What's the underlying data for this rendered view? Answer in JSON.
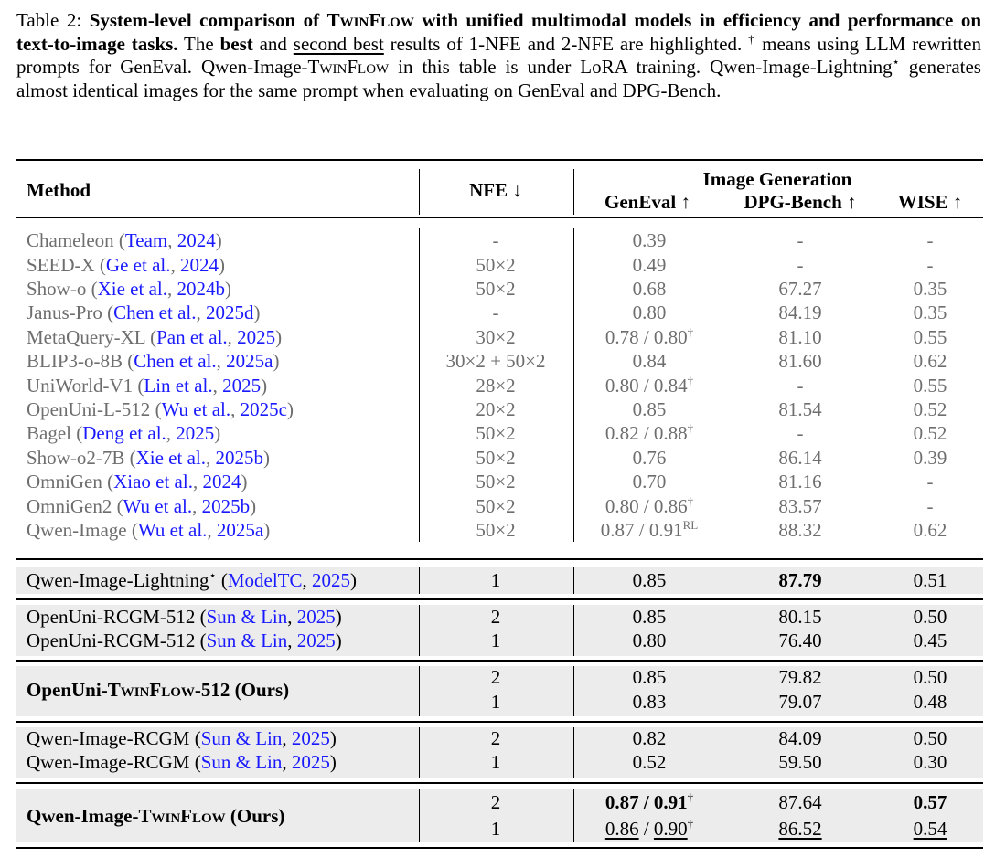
{
  "caption": {
    "label": "Table 2: ",
    "bold_1": "System-level comparison of ",
    "twinflow": "TwinFlow",
    "bold_2": " with unified multimodal models in efficiency and performance on text-to-image tasks.",
    "text_1": " The ",
    "best": "best",
    "text_2": " and ",
    "second_best": "second best",
    "text_3": " results of 1-NFE and 2-NFE are highlighted. ",
    "dagger": "†",
    "text_4": " means using LLM rewritten prompts for GenEval. Qwen-Image-",
    "text_5": " in this table is under LoRA training. Qwen-Image-Lightning",
    "star": "⋆",
    "text_6": " generates almost identical images for the same prompt when evaluating on GenEval and DPG-Bench."
  },
  "header": {
    "method": "Method",
    "nfe": "NFE ↓",
    "group": "Image Generation",
    "geneval": "GenEval ↑",
    "dpg": "DPG-Bench ↑",
    "wise": "WISE ↑"
  },
  "baselines": [
    {
      "name": "Chameleon",
      "author": "Team",
      "year": "2024",
      "nfe": "-",
      "geneval": [
        {
          "t": "0.39"
        }
      ],
      "dpg": [
        {
          "t": "-"
        }
      ],
      "wise": [
        {
          "t": "-"
        }
      ]
    },
    {
      "name": "SEED-X",
      "author": "Ge et al.",
      "year": "2024",
      "nfe": "50×2",
      "geneval": [
        {
          "t": "0.49"
        }
      ],
      "dpg": [
        {
          "t": "-"
        }
      ],
      "wise": [
        {
          "t": "-"
        }
      ]
    },
    {
      "name": "Show-o",
      "author": "Xie et al.",
      "year": "2024b",
      "nfe": "50×2",
      "geneval": [
        {
          "t": "0.68"
        }
      ],
      "dpg": [
        {
          "t": "67.27"
        }
      ],
      "wise": [
        {
          "t": "0.35"
        }
      ]
    },
    {
      "name": "Janus-Pro",
      "author": "Chen et al.",
      "year": "2025d",
      "nfe": "-",
      "geneval": [
        {
          "t": "0.80"
        }
      ],
      "dpg": [
        {
          "t": "84.19"
        }
      ],
      "wise": [
        {
          "t": "0.35"
        }
      ]
    },
    {
      "name": "MetaQuery-XL",
      "author": "Pan et al.",
      "year": "2025",
      "nfe": "30×2",
      "geneval": [
        {
          "t": "0.78 / 0.80",
          "sup": "†"
        }
      ],
      "dpg": [
        {
          "t": "81.10"
        }
      ],
      "wise": [
        {
          "t": "0.55"
        }
      ]
    },
    {
      "name": "BLIP3-o-8B",
      "author": "Chen et al.",
      "year": "2025a",
      "nfe": "30×2 + 50×2",
      "geneval": [
        {
          "t": "0.84"
        }
      ],
      "dpg": [
        {
          "t": "81.60"
        }
      ],
      "wise": [
        {
          "t": "0.62"
        }
      ]
    },
    {
      "name": "UniWorld-V1",
      "author": "Lin et al.",
      "year": "2025",
      "nfe": "28×2",
      "geneval": [
        {
          "t": "0.80 / 0.84",
          "sup": "†"
        }
      ],
      "dpg": [
        {
          "t": "-"
        }
      ],
      "wise": [
        {
          "t": "0.55"
        }
      ]
    },
    {
      "name": "OpenUni-L-512",
      "author": "Wu et al.",
      "year": "2025c",
      "nfe": "20×2",
      "geneval": [
        {
          "t": "0.85"
        }
      ],
      "dpg": [
        {
          "t": "81.54"
        }
      ],
      "wise": [
        {
          "t": "0.52"
        }
      ]
    },
    {
      "name": "Bagel",
      "author": "Deng et al.",
      "year": "2025",
      "nfe": "50×2",
      "geneval": [
        {
          "t": "0.82 / 0.88",
          "sup": "†"
        }
      ],
      "dpg": [
        {
          "t": "-"
        }
      ],
      "wise": [
        {
          "t": "0.52"
        }
      ]
    },
    {
      "name": "Show-o2-7B",
      "author": "Xie et al.",
      "year": "2025b",
      "nfe": "50×2",
      "geneval": [
        {
          "t": "0.76"
        }
      ],
      "dpg": [
        {
          "t": "86.14"
        }
      ],
      "wise": [
        {
          "t": "0.39"
        }
      ]
    },
    {
      "name": "OmniGen",
      "author": "Xiao et al.",
      "year": "2024",
      "nfe": "50×2",
      "geneval": [
        {
          "t": "0.70"
        }
      ],
      "dpg": [
        {
          "t": "81.16"
        }
      ],
      "wise": [
        {
          "t": "-"
        }
      ]
    },
    {
      "name": "OmniGen2",
      "author": "Wu et al.",
      "year": "2025b",
      "nfe": "50×2",
      "geneval": [
        {
          "t": "0.80 / 0.86",
          "sup": "†"
        }
      ],
      "dpg": [
        {
          "t": "83.57"
        }
      ],
      "wise": [
        {
          "t": "-"
        }
      ]
    },
    {
      "name": "Qwen-Image",
      "author": "Wu et al.",
      "year": "2025a",
      "nfe": "50×2",
      "geneval": [
        {
          "t": "0.87 / 0.91",
          "sup": "RL"
        }
      ],
      "dpg": [
        {
          "t": "88.32"
        }
      ],
      "wise": [
        {
          "t": "0.62"
        }
      ]
    }
  ],
  "groups": [
    {
      "name": "Qwen-Image-Lightning",
      "name_sup": "⋆",
      "author": "ModelTC",
      "year": "2025",
      "rows": [
        {
          "nfe": "1",
          "geneval": [
            {
              "t": "0.85"
            }
          ],
          "dpg": [
            {
              "t": "87.79",
              "b": true
            }
          ],
          "wise": [
            {
              "t": "0.51"
            }
          ]
        }
      ]
    },
    {
      "name": "OpenUni-RCGM-512",
      "author": "Sun & Lin",
      "year": "2025",
      "per_row_name": true,
      "rows": [
        {
          "nfe": "2",
          "geneval": [
            {
              "t": "0.85"
            }
          ],
          "dpg": [
            {
              "t": "80.15"
            }
          ],
          "wise": [
            {
              "t": "0.50"
            }
          ]
        },
        {
          "nfe": "1",
          "geneval": [
            {
              "t": "0.80"
            }
          ],
          "dpg": [
            {
              "t": "76.40"
            }
          ],
          "wise": [
            {
              "t": "0.45"
            }
          ]
        }
      ]
    },
    {
      "name_prefix": "OpenUni-",
      "name_sc": "TwinFlow",
      "name_suffix": "-512 (Ours)",
      "bold": true,
      "rows": [
        {
          "nfe": "2",
          "geneval": [
            {
              "t": "0.85"
            }
          ],
          "dpg": [
            {
              "t": "79.82"
            }
          ],
          "wise": [
            {
              "t": "0.50"
            }
          ]
        },
        {
          "nfe": "1",
          "geneval": [
            {
              "t": "0.83"
            }
          ],
          "dpg": [
            {
              "t": "79.07"
            }
          ],
          "wise": [
            {
              "t": "0.48"
            }
          ]
        }
      ]
    },
    {
      "name": "Qwen-Image-RCGM",
      "author": "Sun & Lin",
      "year": "2025",
      "per_row_name": true,
      "rows": [
        {
          "nfe": "2",
          "geneval": [
            {
              "t": "0.82"
            }
          ],
          "dpg": [
            {
              "t": "84.09"
            }
          ],
          "wise": [
            {
              "t": "0.50"
            }
          ]
        },
        {
          "nfe": "1",
          "geneval": [
            {
              "t": "0.52"
            }
          ],
          "dpg": [
            {
              "t": "59.50"
            }
          ],
          "wise": [
            {
              "t": "0.30"
            }
          ]
        }
      ]
    },
    {
      "name_prefix": "Qwen-Image-",
      "name_sc": "TwinFlow",
      "name_suffix": " (Ours)",
      "bold": true,
      "rows": [
        {
          "nfe": "2",
          "geneval": [
            {
              "t": "0.87 / 0.91",
              "b": true,
              "sup": "†"
            }
          ],
          "dpg": [
            {
              "t": "87.64"
            }
          ],
          "wise": [
            {
              "t": "0.57",
              "b": true
            }
          ]
        },
        {
          "nfe": "1",
          "geneval": [
            {
              "t": "0.86",
              "u": true
            },
            {
              "t": " / "
            },
            {
              "t": "0.90",
              "u": true,
              "sup": "†"
            }
          ],
          "dpg": [
            {
              "t": "86.52",
              "u": true
            }
          ],
          "wise": [
            {
              "t": "0.54",
              "u": true
            }
          ]
        }
      ]
    }
  ]
}
